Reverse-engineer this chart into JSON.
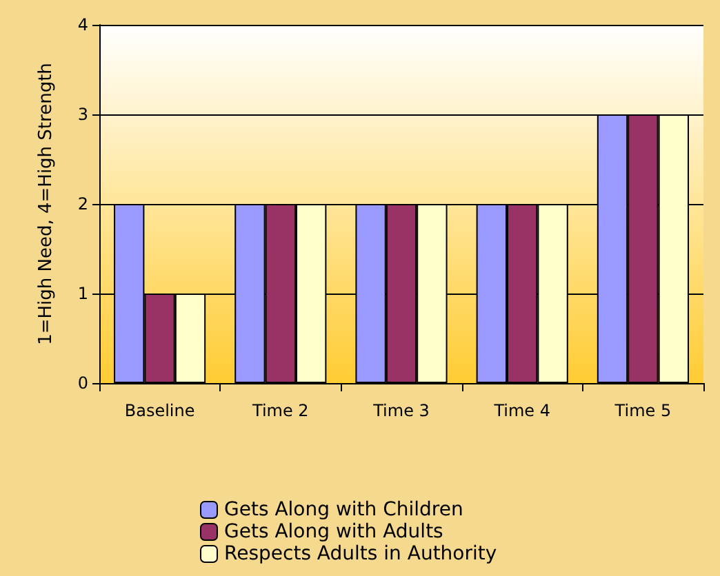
{
  "chart_data": {
    "type": "bar",
    "ylabel": "1=High Need, 4=High Strength",
    "categories": [
      "Baseline",
      "Time 2",
      "Time 3",
      "Time 4",
      "Time 5"
    ],
    "series": [
      {
        "name": "Gets Along with Children",
        "color": "#9999ff",
        "values": [
          2,
          2,
          2,
          2,
          3
        ]
      },
      {
        "name": "Gets Along with Adults",
        "color": "#993366",
        "values": [
          1,
          2,
          2,
          2,
          3
        ]
      },
      {
        "name": "Respects Adults in Authority",
        "color": "#ffffcc",
        "values": [
          1,
          2,
          2,
          2,
          3
        ]
      }
    ],
    "ylim": [
      0,
      4
    ],
    "yticks": [
      0,
      1,
      2,
      3,
      4
    ],
    "grid": "y",
    "legend": "bottom"
  }
}
